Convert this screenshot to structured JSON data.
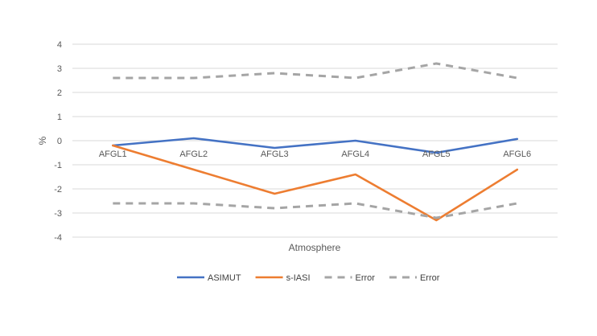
{
  "chart_data": {
    "type": "line",
    "title": "",
    "xlabel": "Atmosphere",
    "ylabel": "%",
    "categories": [
      "AFGL1",
      "AFGL2",
      "AFGL3",
      "AFGL4",
      "AFGL5",
      "AFGL6"
    ],
    "ylim": [
      -4,
      4
    ],
    "yticks": [
      4,
      3,
      2,
      1,
      0,
      -1,
      -2,
      -3,
      -4
    ],
    "grid": true,
    "legend_position": "bottom",
    "series": [
      {
        "name": "ASIMUT",
        "values": [
          -0.2,
          0.1,
          -0.3,
          0.0,
          -0.5,
          0.07
        ],
        "color": "#4472c4",
        "dash": "solid"
      },
      {
        "name": "s-IASI",
        "values": [
          -0.2,
          -1.2,
          -2.2,
          -1.4,
          -3.3,
          -1.2
        ],
        "color": "#ed7d31",
        "dash": "solid"
      },
      {
        "name": "Error",
        "values": [
          2.6,
          2.6,
          2.8,
          2.6,
          3.2,
          2.6
        ],
        "color": "#a5a5a5",
        "dash": "dashed"
      },
      {
        "name": "Error",
        "values": [
          -2.6,
          -2.6,
          -2.8,
          -2.6,
          -3.2,
          -2.6
        ],
        "color": "#a5a5a5",
        "dash": "dashed"
      }
    ]
  }
}
